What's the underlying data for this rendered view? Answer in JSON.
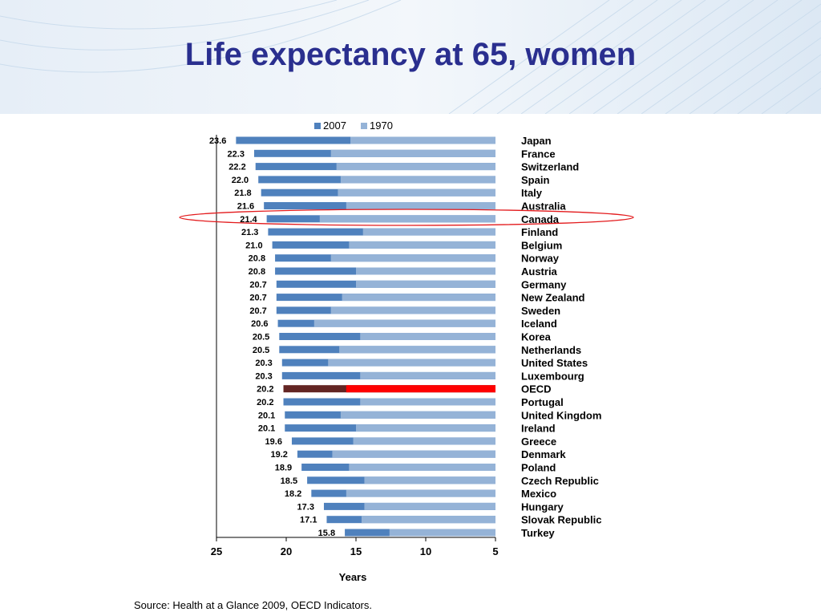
{
  "slide": {
    "title": "Life expectancy at 65, women",
    "source": "Source: Health at a Glance 2009, OECD Indicators."
  },
  "colors": {
    "title": "#2a2f8f",
    "bar_2007": "#4f81bd",
    "bar_1970": "#95b3d7",
    "oecd_2007": "#632523",
    "oecd_1970": "#ff0000",
    "highlight_ellipse": "#e31a1c",
    "header_wash": "#dbe7f3"
  },
  "chart_data": {
    "type": "bar",
    "orientation": "horizontal",
    "x_axis_reversed": true,
    "xlabel": "Years",
    "ylabel": "",
    "xlim": [
      25,
      5
    ],
    "xticks": [
      "25",
      "20",
      "15",
      "10",
      "5"
    ],
    "legend": {
      "position": "top",
      "entries": [
        "2007",
        "1970"
      ]
    },
    "highlighted_category": "Canada",
    "categories": [
      "Japan",
      "France",
      "Switzerland",
      "Spain",
      "Italy",
      "Australia",
      "Canada",
      "Finland",
      "Belgium",
      "Norway",
      "Austria",
      "Germany",
      "New Zealand",
      "Sweden",
      "Iceland",
      "Korea",
      "Netherlands",
      "United States",
      "Luxembourg",
      "OECD",
      "Portugal",
      "United Kingdom",
      "Ireland",
      "Greece",
      "Denmark",
      "Poland",
      "Czech Republic",
      "Mexico",
      "Hungary",
      "Slovak Republic",
      "Turkey"
    ],
    "series": [
      {
        "name": "2007",
        "values": [
          23.6,
          22.3,
          22.2,
          22.0,
          21.8,
          21.6,
          21.4,
          21.3,
          21.0,
          20.8,
          20.8,
          20.7,
          20.7,
          20.7,
          20.6,
          20.5,
          20.5,
          20.3,
          20.3,
          20.2,
          20.2,
          20.1,
          20.1,
          19.6,
          19.2,
          18.9,
          18.5,
          18.2,
          17.3,
          17.1,
          15.8
        ]
      },
      {
        "name": "1970",
        "values": [
          15.4,
          16.8,
          16.4,
          16.1,
          16.3,
          15.7,
          17.6,
          14.5,
          15.5,
          16.8,
          15.0,
          15.0,
          16.0,
          16.8,
          18.0,
          14.7,
          16.2,
          17.0,
          14.7,
          15.7,
          14.7,
          16.1,
          15.0,
          15.2,
          16.7,
          15.5,
          14.4,
          15.7,
          14.4,
          14.6,
          12.6
        ]
      }
    ]
  }
}
